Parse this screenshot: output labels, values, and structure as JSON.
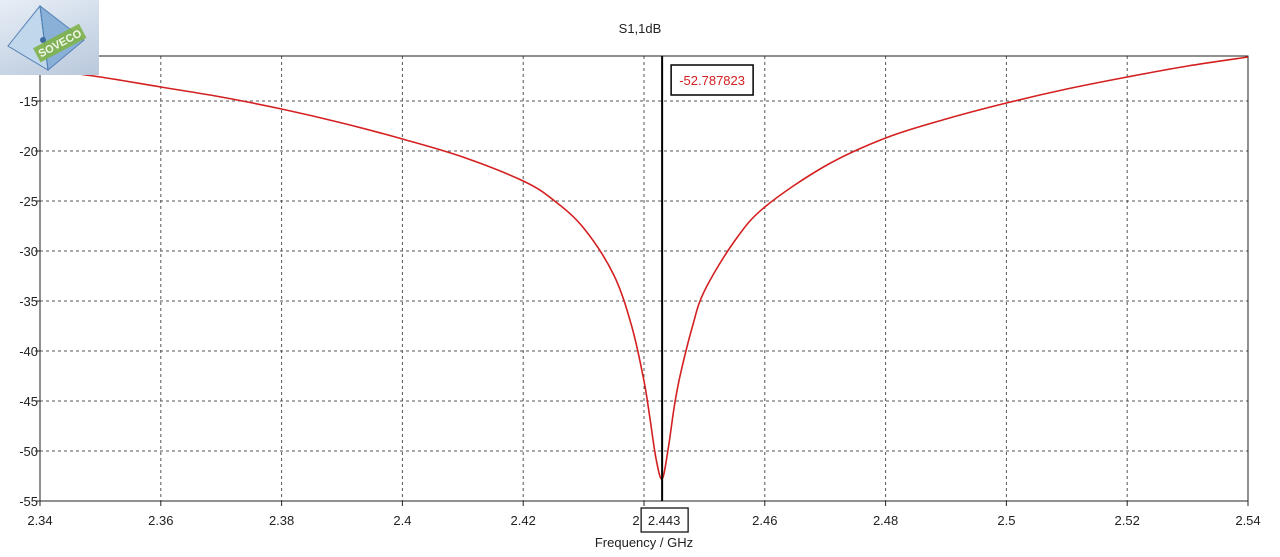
{
  "chart_data": {
    "type": "line",
    "title": "S1,1dB",
    "xlabel": "Frequency / GHz",
    "ylabel": "",
    "xlim": [
      2.34,
      2.54
    ],
    "ylim": [
      -55,
      -10.5
    ],
    "grid": true,
    "x_ticks": [
      "2.34",
      "2.36",
      "2.38",
      "2.4",
      "2.42",
      "2.44",
      "2.46",
      "2.48",
      "2.5",
      "2.52",
      "2.54"
    ],
    "y_ticks": [
      "-15",
      "-20",
      "-25",
      "-30",
      "-35",
      "-40",
      "-45",
      "-50",
      "-55"
    ],
    "series": [
      {
        "color": "#d42020",
        "x": [
          2.34,
          2.35,
          2.36,
          2.37,
          2.38,
          2.39,
          2.4,
          2.41,
          2.42,
          2.425,
          2.43,
          2.435,
          2.438,
          2.44,
          2.441,
          2.442,
          2.443,
          2.444,
          2.445,
          2.446,
          2.448,
          2.45,
          2.455,
          2.46,
          2.47,
          2.48,
          2.49,
          2.5,
          2.51,
          2.52,
          2.53,
          2.54
        ],
        "y": [
          -11.8,
          -12.6,
          -13.6,
          -14.6,
          -15.8,
          -17.2,
          -18.8,
          -20.6,
          -23.0,
          -24.9,
          -27.7,
          -32.4,
          -37.6,
          -43.0,
          -46.8,
          -50.8,
          -52.79,
          -49.8,
          -45.6,
          -42.4,
          -37.6,
          -34.0,
          -29.0,
          -25.6,
          -21.5,
          -18.7,
          -16.8,
          -15.2,
          -13.8,
          -12.6,
          -11.5,
          -10.6
        ]
      }
    ],
    "marker": {
      "x": 2.443,
      "x_label": "2.443",
      "value_label": "-52.787823"
    }
  },
  "logo": {
    "name": "cube-logo-icon",
    "text": "SOVECO"
  }
}
